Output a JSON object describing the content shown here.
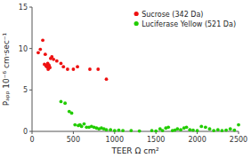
{
  "chart_data": {
    "type": "scatter",
    "x_label": "TEER Ω cm²",
    "y_label": "Pₐₚₚ 10⁻⁶ cm·sec⁻¹",
    "series": [
      {
        "name": "Sucrose (342 Da)",
        "color": "#EE1111",
        "x": [
          75,
          100,
          130,
          150,
          160,
          170,
          175,
          180,
          185,
          190,
          195,
          200,
          205,
          210,
          215,
          225,
          240,
          260,
          300,
          350,
          380,
          430,
          500,
          550,
          700,
          800,
          900
        ],
        "values": [
          9.5,
          9.9,
          11.0,
          8.1,
          9.3,
          7.9,
          8.0,
          7.8,
          7.9,
          8.2,
          7.5,
          7.6,
          8.0,
          7.8,
          7.7,
          8.8,
          9.0,
          8.7,
          8.5,
          8.2,
          7.8,
          7.5,
          7.5,
          7.8,
          7.5,
          7.5,
          6.3
        ]
      },
      {
        "name": "Luciferase Yellow (521 Da)",
        "color": "#22CC00",
        "x": [
          350,
          400,
          450,
          480,
          520,
          560,
          580,
          600,
          630,
          660,
          690,
          720,
          750,
          780,
          810,
          840,
          870,
          900,
          950,
          1000,
          1050,
          1100,
          1200,
          1300,
          1450,
          1500,
          1550,
          1580,
          1620,
          1650,
          1700,
          1730,
          1760,
          1800,
          1840,
          1870,
          1910,
          1950,
          2000,
          2050,
          2100,
          2150,
          2200,
          2250,
          2300,
          2350,
          2400,
          2450,
          2500
        ],
        "values": [
          3.6,
          3.4,
          2.4,
          2.2,
          0.8,
          0.7,
          0.8,
          0.6,
          0.9,
          0.5,
          0.5,
          0.6,
          0.5,
          0.4,
          0.3,
          0.4,
          0.3,
          0.2,
          0.2,
          0.1,
          0.15,
          0.1,
          0.1,
          0.05,
          0.1,
          0.05,
          0.3,
          0.1,
          0.4,
          0.5,
          0.1,
          0.15,
          0.3,
          0.2,
          0.4,
          0.5,
          0.2,
          0.15,
          0.1,
          0.6,
          0.5,
          0.3,
          0.1,
          0.2,
          0.1,
          0.15,
          0.3,
          0.15,
          0.8
        ]
      }
    ],
    "xlim": [
      0,
      2500
    ],
    "ylim": [
      0,
      15
    ],
    "xticks": [
      0,
      500,
      1000,
      1500,
      2000,
      2500
    ],
    "yticks": [
      0,
      5,
      10,
      15
    ],
    "legend": "upper right",
    "grid": false
  }
}
